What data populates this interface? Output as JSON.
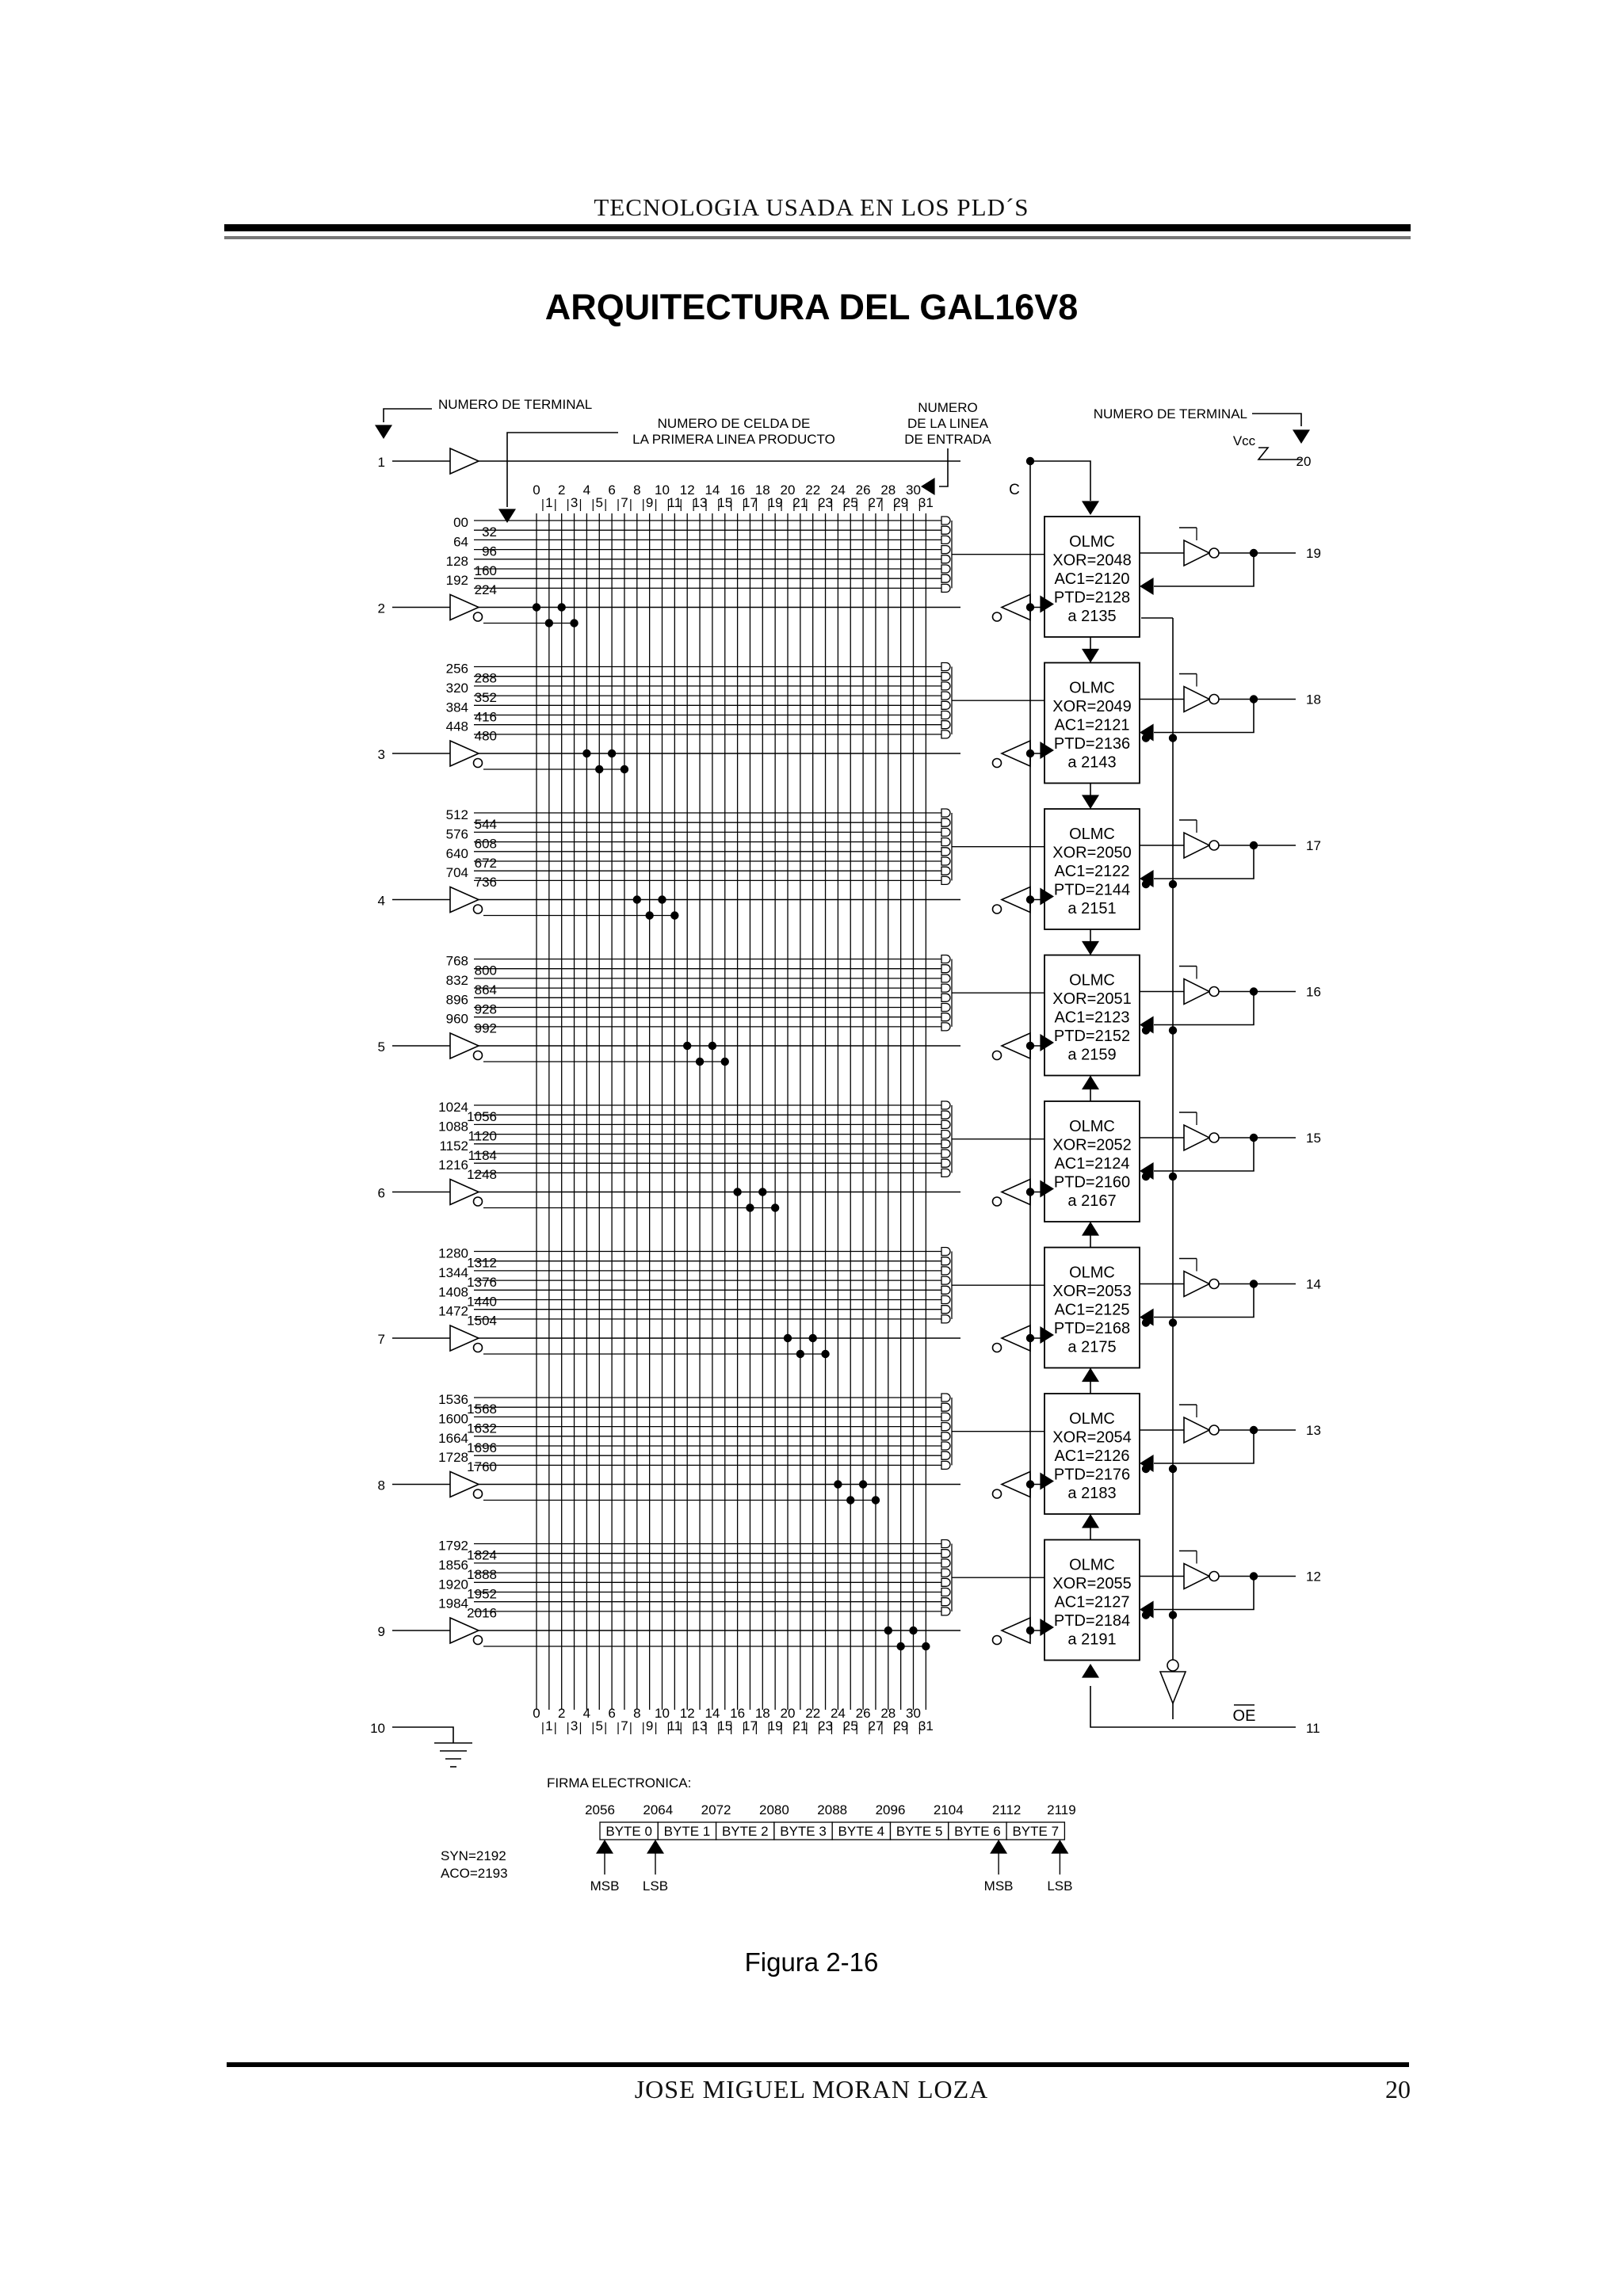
{
  "header": {
    "title": "TECNOLOGIA USADA EN LOS PLD´S"
  },
  "title": "ARQUITECTURA DEL GAL16V8",
  "diagram": {
    "label_terminal_left": "NUMERO DE TERMINAL",
    "label_cell_number": [
      "NUMERO DE CELDA DE",
      "LA PRIMERA LINEA PRODUCTO"
    ],
    "label_input_line": [
      "NUMERO",
      "DE LA LINEA",
      "DE ENTRADA"
    ],
    "label_terminal_right": "NUMERO DE TERMINAL",
    "vcc_label": "Vcc",
    "vcc_pin": "20",
    "clock_label": "C",
    "oe_label": "OE",
    "gnd_pin": "10",
    "oe_pin": "11",
    "even_columns": [
      "0",
      "2",
      "4",
      "6",
      "8",
      "10",
      "12",
      "14",
      "16",
      "18",
      "20",
      "22",
      "24",
      "26",
      "28",
      "30"
    ],
    "odd_columns": [
      "1",
      "3",
      "5",
      "7",
      "9",
      "11",
      "13",
      "15",
      "17",
      "19",
      "21",
      "23",
      "25",
      "27",
      "29",
      "31"
    ],
    "input_pins": [
      "1",
      "2",
      "3",
      "4",
      "5",
      "6",
      "7",
      "8",
      "9"
    ],
    "blocks": [
      {
        "row_left": [
          "00",
          "64",
          "128",
          "192"
        ],
        "row_right": [
          "32",
          "96",
          "160",
          "224"
        ],
        "olmc": [
          "OLMC",
          "XOR=2048",
          "AC1=2120",
          "PTD=2128",
          "a 2135"
        ],
        "pin": "19"
      },
      {
        "row_left": [
          "256",
          "320",
          "384",
          "448"
        ],
        "row_right": [
          "288",
          "352",
          "416",
          "480"
        ],
        "olmc": [
          "OLMC",
          "XOR=2049",
          "AC1=2121",
          "PTD=2136",
          "a 2143"
        ],
        "pin": "18"
      },
      {
        "row_left": [
          "512",
          "576",
          "640",
          "704"
        ],
        "row_right": [
          "544",
          "608",
          "672",
          "736"
        ],
        "olmc": [
          "OLMC",
          "XOR=2050",
          "AC1=2122",
          "PTD=2144",
          "a 2151"
        ],
        "pin": "17"
      },
      {
        "row_left": [
          "768",
          "832",
          "896",
          "960"
        ],
        "row_right": [
          "800",
          "864",
          "928",
          "992"
        ],
        "olmc": [
          "OLMC",
          "XOR=2051",
          "AC1=2123",
          "PTD=2152",
          "a 2159"
        ],
        "pin": "16"
      },
      {
        "row_left": [
          "1024",
          "1088",
          "1152",
          "1216"
        ],
        "row_right": [
          "1056",
          "1120",
          "1184",
          "1248"
        ],
        "olmc": [
          "OLMC",
          "XOR=2052",
          "AC1=2124",
          "PTD=2160",
          "a 2167"
        ],
        "pin": "15"
      },
      {
        "row_left": [
          "1280",
          "1344",
          "1408",
          "1472"
        ],
        "row_right": [
          "1312",
          "1376",
          "1440",
          "1504"
        ],
        "olmc": [
          "OLMC",
          "XOR=2053",
          "AC1=2125",
          "PTD=2168",
          "a 2175"
        ],
        "pin": "14"
      },
      {
        "row_left": [
          "1536",
          "1600",
          "1664",
          "1728"
        ],
        "row_right": [
          "1568",
          "1632",
          "1696",
          "1760"
        ],
        "olmc": [
          "OLMC",
          "XOR=2054",
          "AC1=2126",
          "PTD=2176",
          "a 2183"
        ],
        "pin": "13"
      },
      {
        "row_left": [
          "1792",
          "1856",
          "1920",
          "1984"
        ],
        "row_right": [
          "1824",
          "1888",
          "1952",
          "2016"
        ],
        "olmc": [
          "OLMC",
          "XOR=2055",
          "AC1=2127",
          "PTD=2184",
          "a 2191"
        ],
        "pin": "12"
      }
    ],
    "signature": {
      "title": "FIRMA ELECTRONICA:",
      "addresses": [
        "2056",
        "2064",
        "2072",
        "2080",
        "2088",
        "2096",
        "2104",
        "2112",
        "2119"
      ],
      "bytes": [
        "BYTE 0",
        "BYTE 1",
        "BYTE 2",
        "BYTE 3",
        "BYTE 4",
        "BYTE 5",
        "BYTE 6",
        "BYTE 7"
      ],
      "msb": "MSB",
      "lsb": "LSB"
    },
    "syn": "SYN=2192",
    "aco": "ACO=2193"
  },
  "caption": "Figura 2-16",
  "footer": {
    "author": "JOSE MIGUEL MORAN LOZA",
    "page": "20"
  }
}
